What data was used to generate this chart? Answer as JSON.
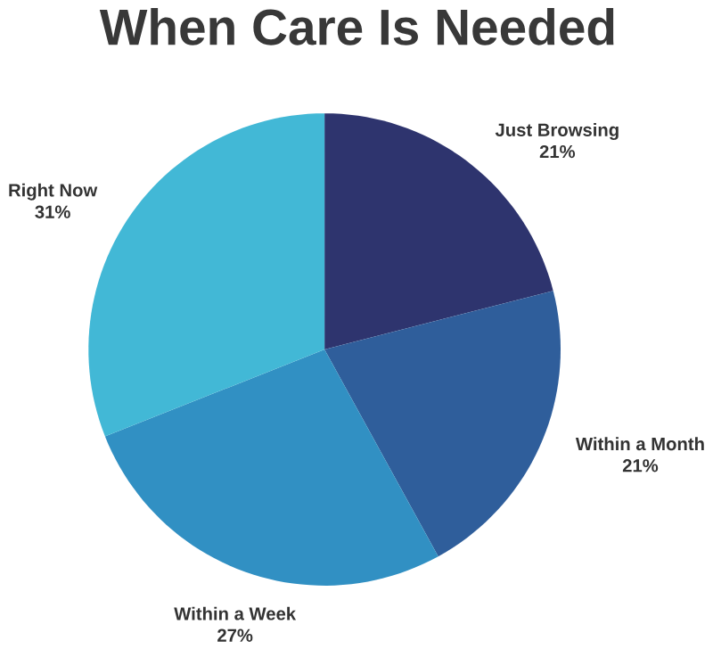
{
  "chart_data": {
    "type": "pie",
    "title": "When Care Is Needed",
    "categories": [
      "Just Browsing",
      "Within a Month",
      "Within a Week",
      "Right Now"
    ],
    "values": [
      21,
      21,
      27,
      31
    ],
    "value_labels": [
      "21%",
      "21%",
      "27%",
      "31%"
    ],
    "colors": [
      "#2e346e",
      "#2f5e9b",
      "#3190c3",
      "#42b8d6"
    ]
  }
}
